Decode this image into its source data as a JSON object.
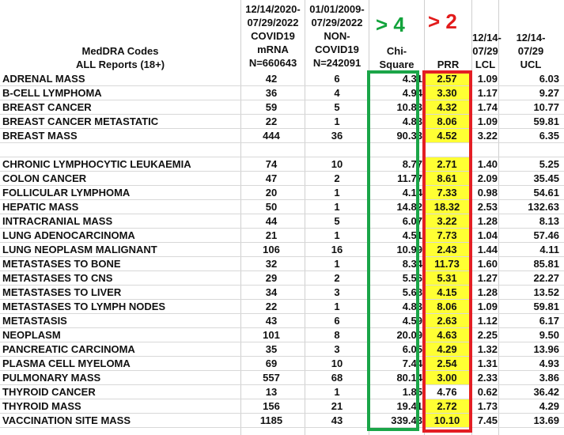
{
  "header": {
    "codes": [
      "MedDRA Codes",
      "ALL Reports (18+)"
    ],
    "covid": [
      "12/14/2020-",
      "07/29/2022",
      "COVID19",
      "mRNA",
      "N=660643"
    ],
    "noncovid": [
      "01/01/2009-",
      "07/29/2022",
      "NON-",
      "COVID19",
      "N=242091"
    ],
    "chi": [
      "Chi-",
      "Square"
    ],
    "prr": [
      "PRR"
    ],
    "lcl": [
      "12/14-",
      "07/29",
      "LCL"
    ],
    "ucl": [
      "12/14-",
      "07/29",
      "UCL"
    ]
  },
  "annotations": {
    "chi_threshold": "> 4",
    "prr_threshold": "> 2"
  },
  "colors": {
    "green": "#1aa548",
    "red": "#e31e24",
    "highlight": "#ffff33"
  },
  "rows": [
    {
      "name": "ADRENAL MASS",
      "covid": "42",
      "noncovid": "6",
      "chi": "4.31",
      "prr": "2.57",
      "lcl": "1.09",
      "ucl": "6.03",
      "hl": true
    },
    {
      "name": "B-CELL LYMPHOMA",
      "covid": "36",
      "noncovid": "4",
      "chi": "4.94",
      "prr": "3.30",
      "lcl": "1.17",
      "ucl": "9.27",
      "hl": true
    },
    {
      "name": "BREAST CANCER",
      "covid": "59",
      "noncovid": "5",
      "chi": "10.83",
      "prr": "4.32",
      "lcl": "1.74",
      "ucl": "10.77",
      "hl": true
    },
    {
      "name": "BREAST CANCER METASTATIC",
      "covid": "22",
      "noncovid": "1",
      "chi": "4.83",
      "prr": "8.06",
      "lcl": "1.09",
      "ucl": "59.81",
      "hl": true
    },
    {
      "name": "BREAST MASS",
      "covid": "444",
      "noncovid": "36",
      "chi": "90.33",
      "prr": "4.52",
      "lcl": "3.22",
      "ucl": "6.35",
      "hl": true
    },
    {
      "name": "",
      "covid": "",
      "noncovid": "",
      "chi": "",
      "prr": "",
      "lcl": "",
      "ucl": "",
      "hl": false
    },
    {
      "name": "CHRONIC LYMPHOCYTIC LEUKAEMIA",
      "covid": "74",
      "noncovid": "10",
      "chi": "8.77",
      "prr": "2.71",
      "lcl": "1.40",
      "ucl": "5.25",
      "hl": true
    },
    {
      "name": "COLON CANCER",
      "covid": "47",
      "noncovid": "2",
      "chi": "11.77",
      "prr": "8.61",
      "lcl": "2.09",
      "ucl": "35.45",
      "hl": true
    },
    {
      "name": "FOLLICULAR LYMPHOMA",
      "covid": "20",
      "noncovid": "1",
      "chi": "4.14",
      "prr": "7.33",
      "lcl": "0.98",
      "ucl": "54.61",
      "hl": true
    },
    {
      "name": "HEPATIC MASS",
      "covid": "50",
      "noncovid": "1",
      "chi": "14.82",
      "prr": "18.32",
      "lcl": "2.53",
      "ucl": "132.63",
      "hl": true
    },
    {
      "name": "INTRACRANIAL MASS",
      "covid": "44",
      "noncovid": "5",
      "chi": "6.07",
      "prr": "3.22",
      "lcl": "1.28",
      "ucl": "8.13",
      "hl": true
    },
    {
      "name": "LUNG ADENOCARCINOMA",
      "covid": "21",
      "noncovid": "1",
      "chi": "4.51",
      "prr": "7.73",
      "lcl": "1.04",
      "ucl": "57.46",
      "hl": true
    },
    {
      "name": "LUNG NEOPLASM MALIGNANT",
      "covid": "106",
      "noncovid": "16",
      "chi": "10.99",
      "prr": "2.43",
      "lcl": "1.44",
      "ucl": "4.11",
      "hl": true
    },
    {
      "name": "METASTASES TO BONE",
      "covid": "32",
      "noncovid": "1",
      "chi": "8.34",
      "prr": "11.73",
      "lcl": "1.60",
      "ucl": "85.81",
      "hl": true
    },
    {
      "name": "METASTASES TO CNS",
      "covid": "29",
      "noncovid": "2",
      "chi": "5.56",
      "prr": "5.31",
      "lcl": "1.27",
      "ucl": "22.27",
      "hl": true
    },
    {
      "name": "METASTASES TO LIVER",
      "covid": "34",
      "noncovid": "3",
      "chi": "5.68",
      "prr": "4.15",
      "lcl": "1.28",
      "ucl": "13.52",
      "hl": true
    },
    {
      "name": "METASTASES TO LYMPH NODES",
      "covid": "22",
      "noncovid": "1",
      "chi": "4.83",
      "prr": "8.06",
      "lcl": "1.09",
      "ucl": "59.81",
      "hl": true
    },
    {
      "name": "METASTASIS",
      "covid": "43",
      "noncovid": "6",
      "chi": "4.59",
      "prr": "2.63",
      "lcl": "1.12",
      "ucl": "6.17",
      "hl": true
    },
    {
      "name": "NEOPLASM",
      "covid": "101",
      "noncovid": "8",
      "chi": "20.09",
      "prr": "4.63",
      "lcl": "2.25",
      "ucl": "9.50",
      "hl": true
    },
    {
      "name": "PANCREATIC CARCINOMA",
      "covid": "35",
      "noncovid": "3",
      "chi": "6.05",
      "prr": "4.29",
      "lcl": "1.32",
      "ucl": "13.96",
      "hl": true
    },
    {
      "name": "PLASMA CELL MYELOMA",
      "covid": "69",
      "noncovid": "10",
      "chi": "7.44",
      "prr": "2.54",
      "lcl": "1.31",
      "ucl": "4.93",
      "hl": true
    },
    {
      "name": "PULMONARY MASS",
      "covid": "557",
      "noncovid": "68",
      "chi": "80.14",
      "prr": "3.00",
      "lcl": "2.33",
      "ucl": "3.86",
      "hl": true
    },
    {
      "name": "THYROID CANCER",
      "covid": "13",
      "noncovid": "1",
      "chi": "1.85",
      "prr": "4.76",
      "lcl": "0.62",
      "ucl": "36.42",
      "hl": false
    },
    {
      "name": "THYROID MASS",
      "covid": "156",
      "noncovid": "21",
      "chi": "19.41",
      "prr": "2.72",
      "lcl": "1.73",
      "ucl": "4.29",
      "hl": true
    },
    {
      "name": "VACCINATION SITE MASS",
      "covid": "1185",
      "noncovid": "43",
      "chi": "339.43",
      "prr": "10.10",
      "lcl": "7.45",
      "ucl": "13.69",
      "hl": true
    }
  ]
}
